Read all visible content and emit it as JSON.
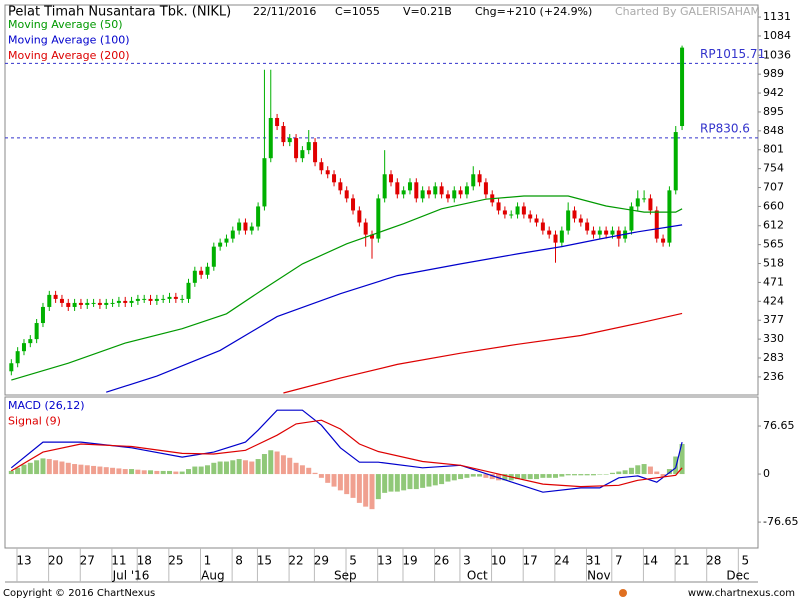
{
  "header": {
    "title": "Pelat Timah Nusantara Tbk. (NIKL)",
    "date": "22/11/2016",
    "close": "C=1055",
    "volume": "V=0.21B",
    "change": "Chg=+210 (+24.9%)",
    "credit": "Charted By GALERISAHAM"
  },
  "footer": {
    "copyright": "Copyright © 2016 ChartNexus",
    "site": "www.chartnexus.com"
  },
  "chart_data": [
    {
      "type": "candlestick",
      "xlim": [
        -1,
        118
      ],
      "ylim": [
        191,
        1161
      ],
      "yticks": [
        236,
        283,
        330,
        377,
        424,
        471,
        518,
        565,
        612,
        660,
        707,
        754,
        801,
        848,
        895,
        942,
        989,
        1036,
        1084,
        1131
      ],
      "up_color": "#00b000",
      "down_color": "#e00000",
      "price_lines": [
        {
          "value": 1015.71,
          "label": "RP1015.71"
        },
        {
          "value": 830.6,
          "label": "RP830.6"
        }
      ],
      "line_color": "#3333cc",
      "candles": {
        "open": [
          250,
          270,
          300,
          320,
          330,
          370,
          410,
          440,
          430,
          420,
          410,
          420,
          415,
          420,
          420,
          415,
          420,
          420,
          425,
          420,
          425,
          430,
          430,
          425,
          430,
          430,
          435,
          430,
          430,
          470,
          500,
          490,
          510,
          560,
          570,
          580,
          600,
          620,
          600,
          610,
          660,
          780,
          880,
          860,
          820,
          830,
          780,
          800,
          820,
          770,
          750,
          740,
          720,
          700,
          680,
          650,
          620,
          590,
          580,
          680,
          740,
          720,
          690,
          700,
          720,
          680,
          700,
          690,
          710,
          690,
          680,
          700,
          690,
          710,
          740,
          720,
          690,
          670,
          650,
          640,
          640,
          660,
          640,
          630,
          620,
          600,
          590,
          570,
          600,
          650,
          630,
          620,
          600,
          590,
          600,
          590,
          600,
          580,
          600,
          660,
          680,
          680,
          650,
          580,
          570,
          700,
          860
        ],
        "high": [
          280,
          310,
          330,
          340,
          380,
          420,
          450,
          450,
          440,
          430,
          430,
          430,
          430,
          430,
          430,
          430,
          430,
          435,
          435,
          435,
          440,
          440,
          440,
          440,
          440,
          445,
          445,
          440,
          480,
          510,
          510,
          520,
          570,
          580,
          590,
          610,
          630,
          630,
          620,
          670,
          1000,
          1000,
          890,
          870,
          840,
          840,
          810,
          850,
          830,
          780,
          760,
          750,
          730,
          710,
          690,
          660,
          630,
          600,
          690,
          800,
          750,
          730,
          710,
          730,
          730,
          710,
          710,
          720,
          720,
          700,
          710,
          710,
          720,
          760,
          750,
          730,
          700,
          680,
          660,
          650,
          670,
          670,
          650,
          640,
          630,
          610,
          600,
          610,
          670,
          660,
          640,
          630,
          610,
          610,
          610,
          610,
          610,
          610,
          670,
          700,
          700,
          690,
          660,
          590,
          710,
          860,
          1060
        ],
        "low": [
          240,
          260,
          290,
          310,
          320,
          360,
          400,
          420,
          410,
          400,
          400,
          405,
          405,
          410,
          405,
          405,
          410,
          410,
          410,
          410,
          415,
          420,
          415,
          415,
          420,
          420,
          420,
          420,
          420,
          460,
          480,
          480,
          500,
          550,
          560,
          570,
          590,
          590,
          590,
          600,
          650,
          770,
          850,
          810,
          810,
          770,
          770,
          790,
          760,
          740,
          730,
          710,
          690,
          670,
          640,
          610,
          560,
          530,
          570,
          670,
          710,
          680,
          680,
          690,
          670,
          670,
          680,
          680,
          680,
          670,
          670,
          680,
          680,
          700,
          710,
          680,
          660,
          640,
          630,
          630,
          630,
          630,
          620,
          610,
          590,
          580,
          520,
          560,
          590,
          620,
          610,
          590,
          580,
          580,
          580,
          580,
          560,
          570,
          590,
          650,
          670,
          640,
          570,
          560,
          560,
          690,
          850
        ],
        "close": [
          270,
          300,
          320,
          330,
          370,
          410,
          440,
          430,
          420,
          410,
          420,
          415,
          420,
          420,
          415,
          420,
          420,
          425,
          420,
          425,
          430,
          430,
          425,
          430,
          430,
          435,
          430,
          430,
          470,
          500,
          490,
          510,
          560,
          570,
          580,
          600,
          620,
          600,
          610,
          660,
          780,
          880,
          860,
          820,
          830,
          780,
          800,
          820,
          770,
          750,
          740,
          720,
          700,
          680,
          650,
          620,
          590,
          580,
          680,
          740,
          720,
          690,
          700,
          720,
          680,
          700,
          690,
          710,
          690,
          680,
          700,
          690,
          710,
          740,
          720,
          690,
          670,
          650,
          640,
          640,
          660,
          640,
          630,
          620,
          600,
          590,
          570,
          600,
          650,
          630,
          620,
          600,
          590,
          600,
          590,
          600,
          580,
          600,
          660,
          680,
          680,
          650,
          580,
          570,
          700,
          845,
          1055
        ]
      },
      "series": [
        {
          "name": "Moving Average (50)",
          "color": "#009900",
          "x": [
            0,
            9,
            18,
            27,
            34,
            40,
            46,
            53,
            62,
            68,
            75,
            81,
            88,
            94,
            100,
            105,
            106
          ],
          "values": [
            228,
            270,
            320,
            356,
            393,
            456,
            517,
            567,
            617,
            654,
            678,
            686,
            686,
            661,
            646,
            646,
            654
          ]
        },
        {
          "name": "Moving Average (100)",
          "color": "#0000cc",
          "x": [
            15,
            23,
            33,
            42,
            52,
            61,
            71,
            80,
            87,
            93,
            99,
            106
          ],
          "values": [
            198,
            238,
            302,
            386,
            443,
            488,
            517,
            542,
            560,
            579,
            597,
            614
          ]
        },
        {
          "name": "Moving Average (200)",
          "color": "#dd0000",
          "x": [
            43,
            52,
            61,
            71,
            80,
            90,
            99,
            106
          ],
          "values": [
            196,
            233,
            267,
            295,
            317,
            339,
            369,
            394
          ]
        }
      ]
    },
    {
      "type": "macd",
      "xlim": [
        -1,
        118
      ],
      "ylim": [
        -118,
        123
      ],
      "yticks": [
        -76.65,
        0,
        76.65
      ],
      "rise_color": "#90c878",
      "fall_color": "#f0a090",
      "histogram": [
        5,
        10,
        15,
        18,
        22,
        25,
        24,
        22,
        20,
        18,
        16,
        15,
        14,
        13,
        12,
        11,
        10,
        9,
        8,
        8,
        7,
        6,
        6,
        5,
        5,
        5,
        4,
        4,
        8,
        12,
        12,
        14,
        18,
        20,
        20,
        22,
        24,
        22,
        20,
        24,
        32,
        38,
        36,
        30,
        26,
        18,
        14,
        10,
        2,
        -6,
        -14,
        -20,
        -26,
        -32,
        -38,
        -46,
        -52,
        -56,
        -40,
        -30,
        -28,
        -28,
        -26,
        -24,
        -24,
        -22,
        -20,
        -18,
        -16,
        -12,
        -10,
        -8,
        -6,
        -4,
        -4,
        -6,
        -8,
        -10,
        -10,
        -10,
        -8,
        -8,
        -8,
        -8,
        -6,
        -6,
        -6,
        -4,
        -2,
        -2,
        -2,
        -2,
        -2,
        0,
        0,
        2,
        4,
        6,
        10,
        14,
        16,
        12,
        4,
        -4,
        8,
        28,
        48
      ],
      "series": [
        {
          "name": "MACD (26,12)",
          "color": "#0000cc",
          "x": [
            0,
            5,
            11,
            19,
            27,
            32,
            37,
            39,
            42,
            46,
            49,
            52,
            55,
            58,
            65,
            71,
            77,
            84,
            90,
            93,
            96,
            99,
            102,
            105,
            106
          ],
          "values": [
            10,
            51,
            51,
            42,
            27,
            35,
            51,
            70,
            102,
            102,
            78,
            42,
            19,
            19,
            10,
            14,
            -6,
            -29,
            -22,
            -22,
            -6,
            -3,
            -13,
            10,
            51
          ]
        },
        {
          "name": "Signal (9)",
          "color": "#dd0000",
          "x": [
            0,
            5,
            11,
            19,
            27,
            32,
            37,
            42,
            45,
            49,
            52,
            55,
            58,
            65,
            71,
            77,
            84,
            90,
            96,
            99,
            102,
            105,
            106
          ],
          "values": [
            5,
            35,
            48,
            44,
            33,
            32,
            38,
            62,
            80,
            86,
            72,
            48,
            36,
            20,
            14,
            0,
            -16,
            -20,
            -18,
            -10,
            -6,
            -2,
            10
          ]
        }
      ],
      "xticks": [
        {
          "value": 2,
          "label": "13"
        },
        {
          "value": 7,
          "label": "20"
        },
        {
          "value": 12,
          "label": "27"
        },
        {
          "value": 17,
          "label": "11"
        },
        {
          "value": 21,
          "label": "18"
        },
        {
          "value": 26,
          "label": "25"
        },
        {
          "value": 31,
          "label": "1"
        },
        {
          "value": 36,
          "label": "8"
        },
        {
          "value": 40,
          "label": "15"
        },
        {
          "value": 45,
          "label": "22"
        },
        {
          "value": 49,
          "label": "29"
        },
        {
          "value": 54,
          "label": "5"
        },
        {
          "value": 59,
          "label": "13"
        },
        {
          "value": 63,
          "label": "19"
        },
        {
          "value": 68,
          "label": "26"
        },
        {
          "value": 72,
          "label": "3"
        },
        {
          "value": 77,
          "label": "10"
        },
        {
          "value": 82,
          "label": "17"
        },
        {
          "value": 87,
          "label": "24"
        },
        {
          "value": 92,
          "label": "31"
        },
        {
          "value": 96,
          "label": "7"
        },
        {
          "value": 101,
          "label": "14"
        },
        {
          "value": 106,
          "label": "21"
        },
        {
          "value": 111,
          "label": "28"
        },
        {
          "value": 116,
          "label": "5"
        }
      ],
      "month_labels": [
        {
          "value": 16,
          "label": "Jul '16"
        },
        {
          "value": 30,
          "label": "Aug"
        },
        {
          "value": 51,
          "label": "Sep"
        },
        {
          "value": 72,
          "label": "Oct"
        },
        {
          "value": 91,
          "label": "Nov"
        },
        {
          "value": 113,
          "label": "Dec"
        }
      ]
    }
  ]
}
